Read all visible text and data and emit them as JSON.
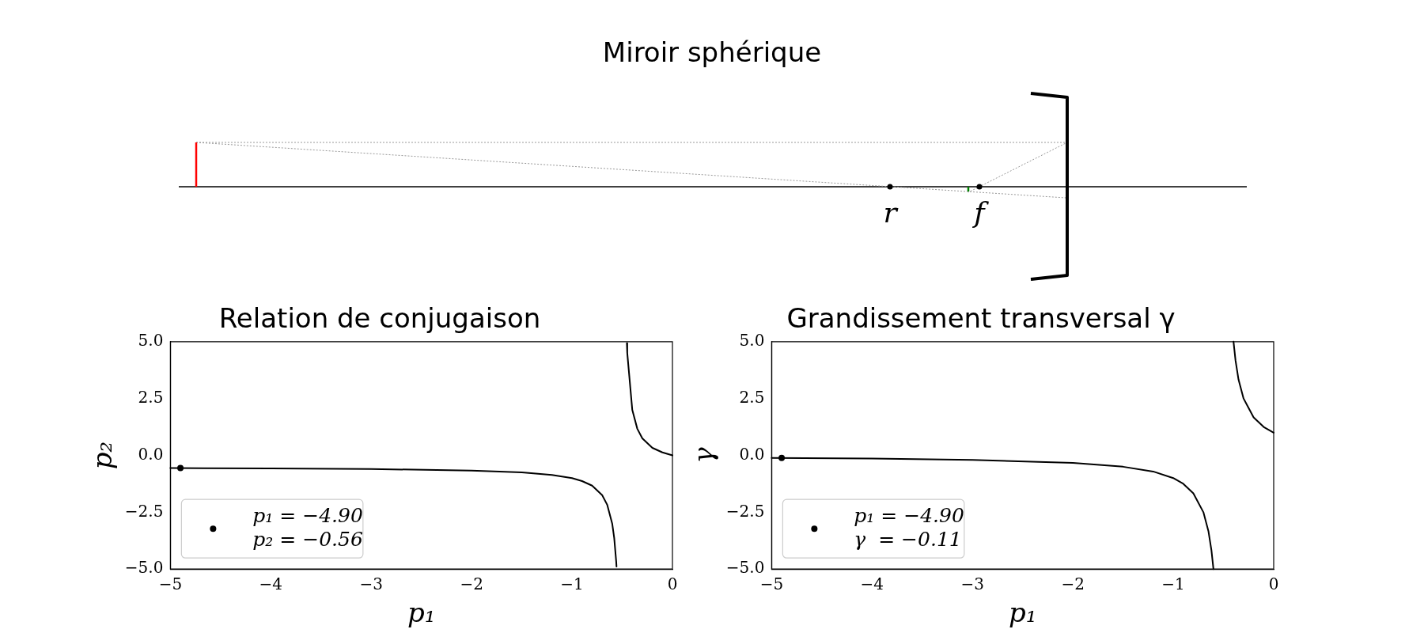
{
  "chart_data": [
    {
      "type": "other",
      "title": "Miroir sphérique",
      "annotations": [
        "r",
        "f"
      ]
    },
    {
      "type": "line",
      "title": "Relation de conjugaison",
      "xlabel": "p₁",
      "ylabel": "p₂",
      "xlim": [
        -5,
        0
      ],
      "ylim": [
        -5,
        5
      ],
      "grid": false,
      "legend": "bottom left",
      "xticks": [
        {
          "value": -5,
          "label": "−5"
        },
        {
          "value": -4,
          "label": "−4"
        },
        {
          "value": -3,
          "label": "−3"
        },
        {
          "value": -2,
          "label": "−2"
        },
        {
          "value": -1,
          "label": "−1"
        },
        {
          "value": 0,
          "label": "0"
        }
      ],
      "yticks": [
        {
          "value": -5,
          "label": "−5.0"
        },
        {
          "value": -2.5,
          "label": "−2.5"
        },
        {
          "value": 0,
          "label": "0.0"
        },
        {
          "value": 2.5,
          "label": "2.5"
        },
        {
          "value": 5,
          "label": "5.0"
        }
      ],
      "series": [
        {
          "type": "line",
          "color": "#000000",
          "line_style": "solid",
          "marker": "none",
          "x": [
            -5,
            -4,
            -3,
            -2,
            -1.5,
            -1.2,
            -1,
            -0.9,
            -0.8,
            -0.7,
            -0.65,
            -0.6,
            -0.58,
            -0.56,
            -0.557,
            -0.5,
            -0.454,
            -0.45,
            -0.4,
            -0.35,
            -0.3,
            -0.2,
            -0.1,
            0
          ],
          "values": [
            -0.56,
            -0.57,
            -0.6,
            -0.67,
            -0.75,
            -0.86,
            -1,
            -1.13,
            -1.33,
            -1.75,
            -2.17,
            -3,
            -3.63,
            -4.67,
            -4.89,
            null,
            4.93,
            4.5,
            2,
            1.17,
            0.75,
            0.33,
            0.13,
            0
          ]
        },
        {
          "type": "scatter",
          "name": "p₁ = −4.90\np₂ = −0.56",
          "color": "#000000",
          "marker": "circle",
          "x": [
            -4.9
          ],
          "values": [
            -0.56
          ]
        }
      ]
    },
    {
      "type": "line",
      "title": "Grandissement transversal γ",
      "xlabel": "p₁",
      "ylabel": "γ",
      "xlim": [
        -5,
        0
      ],
      "ylim": [
        -5,
        5
      ],
      "grid": false,
      "legend": "bottom left",
      "xticks": [
        {
          "value": -5,
          "label": "−5"
        },
        {
          "value": -4,
          "label": "−4"
        },
        {
          "value": -3,
          "label": "−3"
        },
        {
          "value": -2,
          "label": "−2"
        },
        {
          "value": -1,
          "label": "−1"
        },
        {
          "value": 0,
          "label": "0"
        }
      ],
      "yticks": [
        {
          "value": -5,
          "label": "−5.0"
        },
        {
          "value": -2.5,
          "label": "−2.5"
        },
        {
          "value": 0,
          "label": "0.0"
        },
        {
          "value": 2.5,
          "label": "2.5"
        },
        {
          "value": 5,
          "label": "5.0"
        }
      ],
      "series": [
        {
          "type": "line",
          "color": "#000000",
          "line_style": "solid",
          "marker": "none",
          "x": [
            -5,
            -4,
            -3,
            -2,
            -1.5,
            -1.2,
            -1,
            -0.9,
            -0.8,
            -0.7,
            -0.65,
            -0.62,
            -0.6,
            -0.5,
            -0.4,
            -0.38,
            -0.35,
            -0.3,
            -0.2,
            -0.1,
            0
          ],
          "values": [
            -0.11,
            -0.14,
            -0.2,
            -0.33,
            -0.5,
            -0.71,
            -1,
            -1.25,
            -1.67,
            -2.5,
            -3.33,
            -4.17,
            -5,
            null,
            5,
            4.17,
            3.33,
            2.5,
            1.67,
            1.25,
            1
          ]
        },
        {
          "type": "scatter",
          "name": "p₁ = −4.90\nγ  = −0.11",
          "color": "#000000",
          "marker": "circle",
          "x": [
            -4.9
          ],
          "values": [
            -0.11
          ]
        }
      ]
    }
  ]
}
